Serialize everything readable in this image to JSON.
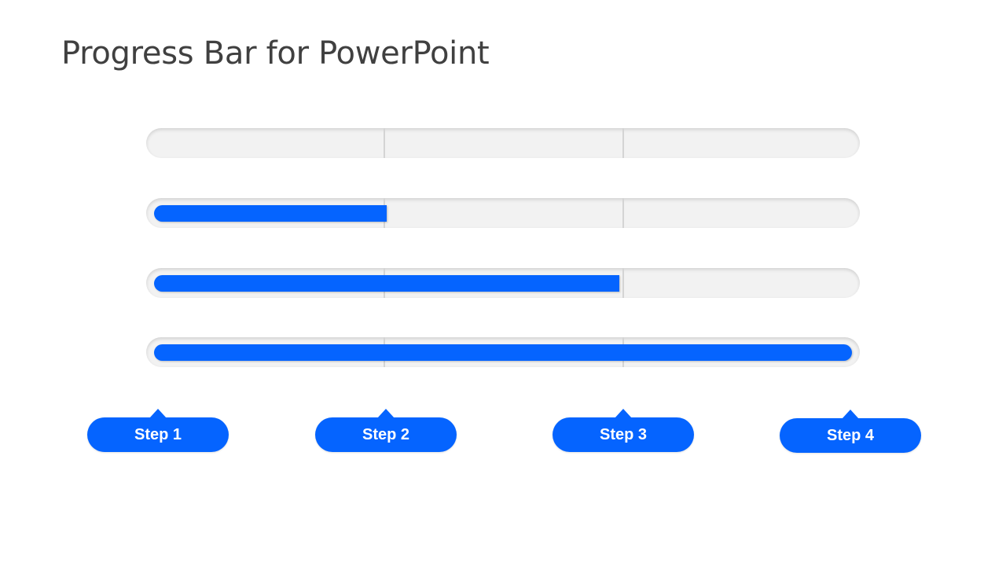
{
  "title": "Progress Bar for PowerPoint",
  "colors": {
    "accent": "#0564ff",
    "track": "#f2f2f2",
    "divider": "#d4d4d4",
    "title_text": "#404040"
  },
  "bars": [
    {
      "progress": 0
    },
    {
      "progress": 0.333
    },
    {
      "progress": 0.667
    },
    {
      "progress": 1
    }
  ],
  "steps": [
    {
      "label": "Step 1"
    },
    {
      "label": "Step 2"
    },
    {
      "label": "Step 3"
    },
    {
      "label": "Step 4"
    }
  ]
}
